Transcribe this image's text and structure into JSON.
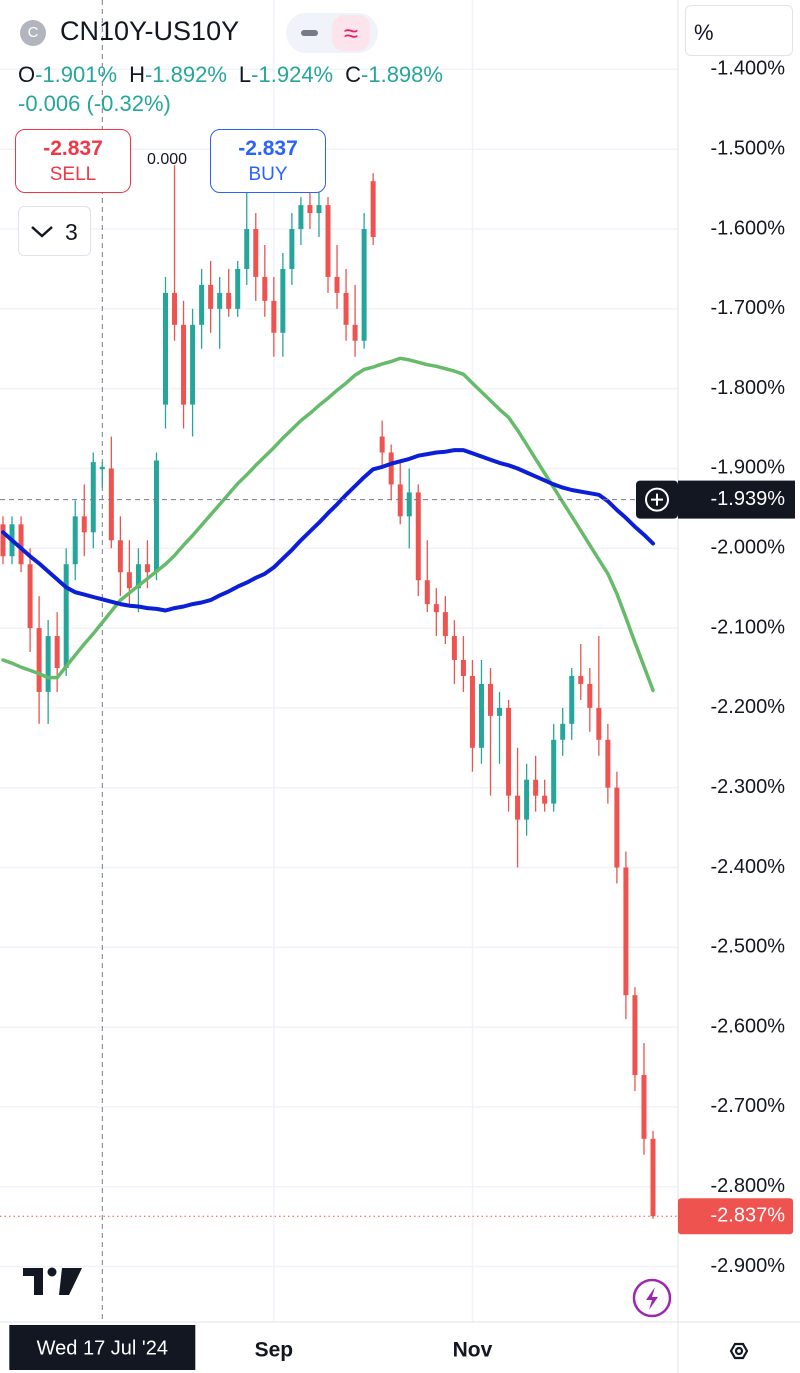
{
  "header": {
    "icon": "C",
    "symbol": "CN10Y-US10Y",
    "ohlc": [
      {
        "key": "O",
        "value": "-1.901%"
      },
      {
        "key": "H",
        "value": "-1.892%"
      },
      {
        "key": "L",
        "value": "-1.924%"
      },
      {
        "key": "C",
        "value": "-1.898%"
      }
    ],
    "change": "-0.006 (-0.32%)"
  },
  "trade": {
    "sell": {
      "price": "-2.837",
      "label": "SELL"
    },
    "spread": "0.000",
    "buy": {
      "price": "-2.837",
      "label": "BUY"
    }
  },
  "indicators_count": "3",
  "scale_button": "%",
  "chart_data": {
    "type": "candlestick",
    "categories": [
      null,
      null,
      null,
      null,
      null,
      null,
      null,
      null,
      null,
      null,
      null,
      "Wed 17 Jul '24",
      null,
      null,
      null,
      null,
      null,
      null,
      null,
      null,
      null,
      null,
      null,
      null,
      null,
      null,
      null,
      null,
      null,
      null,
      "Sep",
      null,
      null,
      null,
      null,
      null,
      null,
      null,
      null,
      null,
      null,
      null,
      null,
      null,
      null,
      null,
      null,
      null,
      null,
      null,
      null,
      null,
      "Nov",
      null,
      null,
      null,
      null,
      null,
      null,
      null,
      null,
      null,
      null,
      null,
      null,
      null,
      null,
      null,
      null,
      null,
      null,
      null,
      null
    ],
    "open": [
      -1.97,
      -2.01,
      -1.97,
      -2.02,
      -2.1,
      -2.18,
      -2.11,
      -2.15,
      -2.02,
      -1.96,
      -1.98,
      -1.901,
      -1.9,
      -1.99,
      -2.03,
      -2.05,
      -2.02,
      -2.03,
      -1.82,
      -1.68,
      -1.72,
      -1.82,
      -1.72,
      -1.67,
      -1.7,
      -1.68,
      -1.7,
      -1.65,
      -1.6,
      -1.66,
      -1.69,
      -1.73,
      -1.65,
      -1.6,
      -1.57,
      -1.58,
      -1.57,
      -1.66,
      -1.68,
      -1.72,
      -1.74,
      -1.54,
      -1.86,
      -1.88,
      -1.92,
      -1.96,
      -1.93,
      -2.04,
      -2.07,
      -2.08,
      -2.11,
      -2.14,
      -2.16,
      -2.25,
      -2.17,
      -2.21,
      -2.2,
      -2.31,
      -2.34,
      -2.29,
      -2.31,
      -2.32,
      -2.24,
      -2.22,
      -2.16,
      -2.17,
      -2.2,
      -2.24,
      -2.3,
      -2.4,
      -2.56,
      -2.66,
      -2.74
    ],
    "high": [
      -1.96,
      -1.96,
      -1.96,
      -2.0,
      -2.06,
      -2.09,
      -2.08,
      -2.0,
      -1.94,
      -1.92,
      -1.88,
      -1.892,
      -1.86,
      -1.96,
      -1.99,
      -2.0,
      -1.99,
      -1.88,
      -1.66,
      -1.52,
      -1.69,
      -1.7,
      -1.65,
      -1.64,
      -1.66,
      -1.65,
      -1.64,
      -1.55,
      -1.58,
      -1.62,
      -1.66,
      -1.63,
      -1.58,
      -1.56,
      -1.55,
      -1.55,
      -1.56,
      -1.62,
      -1.65,
      -1.67,
      -1.58,
      -1.53,
      -1.84,
      -1.87,
      -1.89,
      -1.9,
      -1.92,
      -1.99,
      -2.05,
      -2.06,
      -2.09,
      -2.11,
      -2.14,
      -2.14,
      -2.15,
      -2.18,
      -2.19,
      -2.25,
      -2.27,
      -2.26,
      -2.29,
      -2.22,
      -2.2,
      -2.15,
      -2.12,
      -2.15,
      -2.11,
      -2.22,
      -2.28,
      -2.38,
      -2.55,
      -2.62,
      -2.73
    ],
    "low": [
      -2.02,
      -2.02,
      -2.03,
      -2.13,
      -2.22,
      -2.22,
      -2.18,
      -2.16,
      -2.04,
      -2.01,
      -2.0,
      -1.924,
      -2.0,
      -2.06,
      -2.07,
      -2.08,
      -2.05,
      -2.04,
      -1.85,
      -1.74,
      -1.85,
      -1.86,
      -1.75,
      -1.73,
      -1.75,
      -1.71,
      -1.71,
      -1.67,
      -1.69,
      -1.71,
      -1.76,
      -1.76,
      -1.67,
      -1.62,
      -1.6,
      -1.61,
      -1.68,
      -1.7,
      -1.74,
      -1.76,
      -1.75,
      -1.62,
      -1.9,
      -1.94,
      -1.97,
      -2.0,
      -2.06,
      -2.08,
      -2.11,
      -2.12,
      -2.17,
      -2.18,
      -2.28,
      -2.27,
      -2.31,
      -2.27,
      -2.33,
      -2.4,
      -2.36,
      -2.33,
      -2.33,
      -2.33,
      -2.26,
      -2.24,
      -2.19,
      -2.23,
      -2.26,
      -2.32,
      -2.42,
      -2.59,
      -2.68,
      -2.76,
      -2.84
    ],
    "close": [
      -2.01,
      -1.97,
      -2.02,
      -2.1,
      -2.18,
      -2.11,
      -2.15,
      -2.02,
      -1.96,
      -1.98,
      -1.892,
      -1.898,
      -1.99,
      -2.03,
      -2.05,
      -2.02,
      -2.03,
      -1.89,
      -1.68,
      -1.72,
      -1.82,
      -1.72,
      -1.67,
      -1.7,
      -1.68,
      -1.7,
      -1.65,
      -1.6,
      -1.66,
      -1.69,
      -1.73,
      -1.65,
      -1.6,
      -1.57,
      -1.58,
      -1.57,
      -1.66,
      -1.68,
      -1.72,
      -1.74,
      -1.6,
      -1.61,
      -1.88,
      -1.92,
      -1.96,
      -1.93,
      -2.04,
      -2.07,
      -2.08,
      -2.11,
      -2.14,
      -2.16,
      -2.25,
      -2.17,
      -2.21,
      -2.2,
      -2.31,
      -2.34,
      -2.29,
      -2.31,
      -2.32,
      -2.24,
      -2.22,
      -2.16,
      -2.17,
      -2.2,
      -2.24,
      -2.3,
      -2.4,
      -2.56,
      -2.66,
      -2.74,
      -2.837
    ],
    "up_color": "#26a69a",
    "down_color": "#ef5350",
    "series": [
      {
        "color": "#66bb6a",
        "values": [
          -2.14,
          -2.144,
          -2.149,
          -2.153,
          -2.157,
          -2.162,
          -2.162,
          -2.148,
          -2.134,
          -2.12,
          -2.107,
          -2.093,
          -2.079,
          -2.065,
          -2.056,
          -2.047,
          -2.038,
          -2.029,
          -2.02,
          -2.009,
          -1.996,
          -1.984,
          -1.971,
          -1.958,
          -1.945,
          -1.932,
          -1.919,
          -1.908,
          -1.896,
          -1.885,
          -1.874,
          -1.862,
          -1.851,
          -1.84,
          -1.831,
          -1.821,
          -1.812,
          -1.802,
          -1.793,
          -1.783,
          -1.776,
          -1.773,
          -1.769,
          -1.766,
          -1.762,
          -1.764,
          -1.767,
          -1.77,
          -1.772,
          -1.775,
          -1.778,
          -1.782,
          -1.793,
          -1.804,
          -1.815,
          -1.826,
          -1.836,
          -1.852,
          -1.87,
          -1.888,
          -1.906,
          -1.924,
          -1.942,
          -1.96,
          -1.978,
          -1.996,
          -2.014,
          -2.032,
          -2.057,
          -2.087,
          -2.118,
          -2.148,
          -2.178
        ]
      },
      {
        "color": "#0a1fd6",
        "values": [
          -1.98,
          -1.99,
          -2.0,
          -2.01,
          -2.019,
          -2.029,
          -2.039,
          -2.049,
          -2.055,
          -2.058,
          -2.061,
          -2.064,
          -2.067,
          -2.07,
          -2.072,
          -2.073,
          -2.075,
          -2.076,
          -2.078,
          -2.075,
          -2.073,
          -2.07,
          -2.068,
          -2.065,
          -2.059,
          -2.054,
          -2.048,
          -2.043,
          -2.037,
          -2.032,
          -2.024,
          -2.013,
          -2.002,
          -1.99,
          -1.979,
          -1.968,
          -1.956,
          -1.945,
          -1.933,
          -1.922,
          -1.911,
          -1.901,
          -1.898,
          -1.894,
          -1.891,
          -1.888,
          -1.884,
          -1.882,
          -1.88,
          -1.879,
          -1.877,
          -1.877,
          -1.881,
          -1.885,
          -1.889,
          -1.893,
          -1.896,
          -1.9,
          -1.905,
          -1.91,
          -1.915,
          -1.92,
          -1.924,
          -1.927,
          -1.929,
          -1.931,
          -1.933,
          -1.941,
          -1.952,
          -1.962,
          -1.973,
          -1.983,
          -1.994
        ]
      }
    ],
    "ylim": [
      -2.967,
      -1.313
    ],
    "yticks": [
      {
        "value": -1.4,
        "label": "-1.400%"
      },
      {
        "value": -1.5,
        "label": "-1.500%"
      },
      {
        "value": -1.6,
        "label": "-1.600%"
      },
      {
        "value": -1.7,
        "label": "-1.700%"
      },
      {
        "value": -1.8,
        "label": "-1.800%"
      },
      {
        "value": -1.9,
        "label": "-1.900%"
      },
      {
        "value": -2.0,
        "label": "-2.000%"
      },
      {
        "value": -2.1,
        "label": "-2.100%"
      },
      {
        "value": -2.2,
        "label": "-2.200%"
      },
      {
        "value": -2.3,
        "label": "-2.300%"
      },
      {
        "value": -2.4,
        "label": "-2.400%"
      },
      {
        "value": -2.5,
        "label": "-2.500%"
      },
      {
        "value": -2.6,
        "label": "-2.600%"
      },
      {
        "value": -2.7,
        "label": "-2.700%"
      },
      {
        "value": -2.8,
        "label": "-2.800%"
      },
      {
        "value": -2.9,
        "label": "-2.900%"
      }
    ],
    "grid": true,
    "crosshair": {
      "value": -1.939,
      "label": "-1.939%"
    },
    "last_price": {
      "value": -2.837,
      "label": "-2.837%"
    }
  }
}
